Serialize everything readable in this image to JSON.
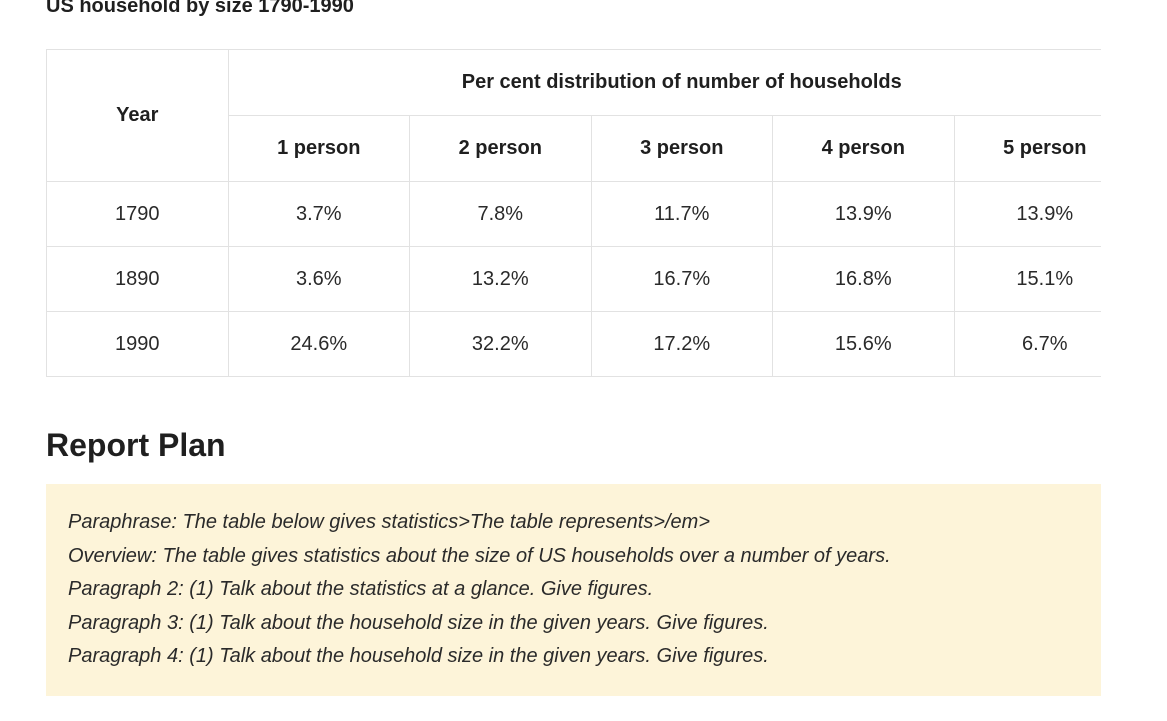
{
  "page": {
    "title": "US household by size 1790-1990"
  },
  "table": {
    "year_header": "Year",
    "group_header": "Per cent distribution of number of households",
    "columns": [
      "1 person",
      "2 person",
      "3 person",
      "4 person",
      "5 person"
    ],
    "rows": [
      {
        "year": "1790",
        "values": [
          "3.7%",
          "7.8%",
          "11.7%",
          "13.9%",
          "13.9%"
        ]
      },
      {
        "year": "1890",
        "values": [
          "3.6%",
          "13.2%",
          "16.7%",
          "16.8%",
          "15.1%"
        ]
      },
      {
        "year": "1990",
        "values": [
          "24.6%",
          "32.2%",
          "17.2%",
          "15.6%",
          "6.7%"
        ]
      }
    ]
  },
  "report": {
    "title": "Report Plan",
    "lines": [
      "Paraphrase: The table below gives statistics>The table represents>/em>",
      "Overview: The table gives statistics about the size of US households over a number of years.",
      "Paragraph 2: (1) Talk about the statistics at a glance. Give figures.",
      "Paragraph 3: (1) Talk about the household size in the given years. Give figures.",
      "Paragraph 4: (1) Talk about the household size in the given years. Give figures."
    ]
  },
  "colors": {
    "plan_background": "#fdf4d9",
    "border": "#e2e2e2",
    "text": "#2a2a2a"
  }
}
